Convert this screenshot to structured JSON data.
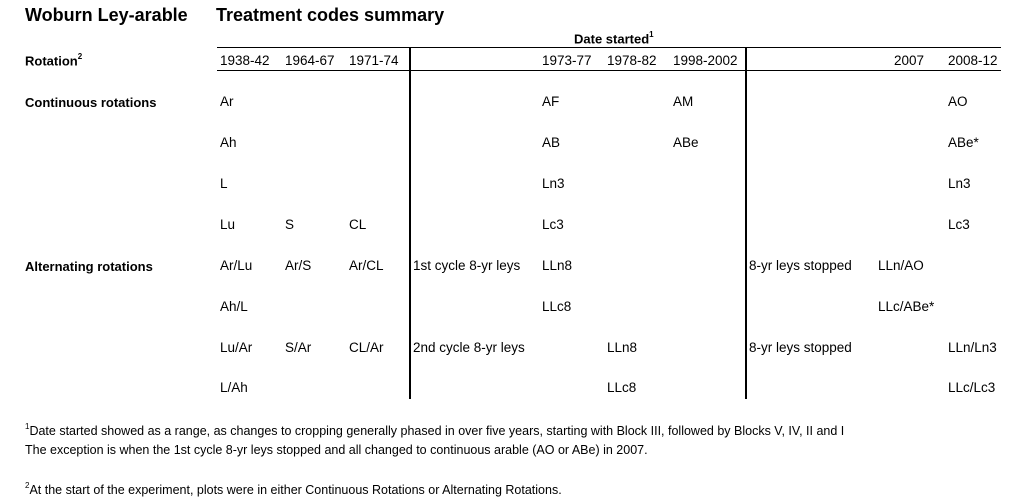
{
  "titles": {
    "main": "Woburn Ley-arable",
    "sub": "Treatment codes summary"
  },
  "header": {
    "date_started": "Date started",
    "date_started_sup": "1",
    "rotation_label": "Rotation",
    "rotation_sup": "2",
    "years": [
      "1938-42",
      "1964-67",
      "1971-74",
      "1973-77",
      "1978-82",
      "1998-2002",
      "2007",
      "2008-12"
    ]
  },
  "groups": {
    "continuous": "Continuous rotations",
    "alternating": "Alternating rotations"
  },
  "rows": [
    {
      "c1": "Ar",
      "c2": "",
      "c3": "",
      "mid": "",
      "c4": "AF",
      "c5": "",
      "c6": "AM",
      "mid2": "",
      "c7": "",
      "c8": "AO"
    },
    {
      "c1": "Ah",
      "c2": "",
      "c3": "",
      "mid": "",
      "c4": "AB",
      "c5": "",
      "c6": "ABe",
      "mid2": "",
      "c7": "",
      "c8": "ABe*"
    },
    {
      "c1": "L",
      "c2": "",
      "c3": "",
      "mid": "",
      "c4": "Ln3",
      "c5": "",
      "c6": "",
      "mid2": "",
      "c7": "",
      "c8": "Ln3"
    },
    {
      "c1": "Lu",
      "c2": "S",
      "c3": "CL",
      "mid": "",
      "c4": "Lc3",
      "c5": "",
      "c6": "",
      "mid2": "",
      "c7": "",
      "c8": "Lc3"
    },
    {
      "c1": "Ar/Lu",
      "c2": "Ar/S",
      "c3": "Ar/CL",
      "mid": "1st cycle 8-yr leys",
      "c4": "LLn8",
      "c5": "",
      "c6": "",
      "mid2": "8-yr leys stopped",
      "c7": "LLn/AO",
      "c8": ""
    },
    {
      "c1": "Ah/L",
      "c2": "",
      "c3": "",
      "mid": "",
      "c4": "LLc8",
      "c5": "",
      "c6": "",
      "mid2": "",
      "c7": "LLc/ABe*",
      "c8": ""
    },
    {
      "c1": "Lu/Ar",
      "c2": "S/Ar",
      "c3": "CL/Ar",
      "mid": "2nd cycle 8-yr leys",
      "c4": "",
      "c5": "LLn8",
      "c6": "",
      "mid2": "8-yr leys stopped",
      "c7": "",
      "c8": "LLn/Ln3"
    },
    {
      "c1": "L/Ah",
      "c2": "",
      "c3": "",
      "mid": "",
      "c4": "",
      "c5": "LLc8",
      "c6": "",
      "mid2": "",
      "c7": "",
      "c8": "LLc/Lc3"
    }
  ],
  "footnotes": {
    "sup1": "1",
    "note1_line1": "Date started showed as a range, as changes to cropping generally phased in over five years, starting with Block III, followed by Blocks V, IV, II and I",
    "note1_line2": "The exception is when the 1st cycle 8-yr leys stopped and all changed to continuous arable (AO or ABe) in 2007.",
    "sup2": "2",
    "note2": "At the start of the experiment, plots were in either Continuous Rotations or Alternating Rotations."
  }
}
